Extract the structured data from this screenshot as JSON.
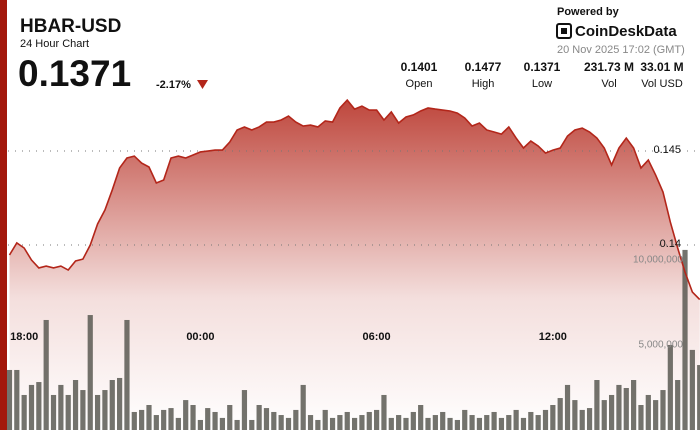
{
  "header": {
    "title": "HBAR-USD",
    "subtitle": "24 Hour Chart",
    "price": "0.1371",
    "change": "-2.17%",
    "powered_by": "Powered by",
    "brand": "CoinDeskData",
    "timestamp": "20 Nov 2025 17:02 (GMT)",
    "stats": [
      {
        "value": "0.1401",
        "label": "Open"
      },
      {
        "value": "0.1477",
        "label": "High"
      },
      {
        "value": "0.1371",
        "label": "Low"
      },
      {
        "value": "231.73 M",
        "label": "Vol"
      },
      {
        "value": "33.01 M",
        "label": "Vol USD"
      }
    ]
  },
  "chart_data": {
    "type": "area",
    "x": [
      17.5,
      17.75,
      18,
      18.25,
      18.5,
      18.75,
      19,
      19.25,
      19.5,
      19.75,
      20,
      20.25,
      20.5,
      20.75,
      21,
      21.25,
      21.5,
      21.75,
      22,
      22.25,
      22.5,
      22.75,
      23,
      23.25,
      23.5,
      23.75,
      24,
      24.25,
      24.5,
      24.75,
      25,
      25.25,
      25.5,
      25.75,
      26,
      26.25,
      26.5,
      26.75,
      27,
      27.25,
      27.5,
      27.75,
      28,
      28.25,
      28.5,
      28.75,
      29,
      29.25,
      29.5,
      29.75,
      30,
      30.25,
      30.5,
      30.75,
      31,
      31.25,
      31.5,
      31.75,
      32,
      32.25,
      32.5,
      32.75,
      33,
      33.25,
      33.5,
      33.75,
      34,
      34.25,
      34.5,
      34.75,
      35,
      35.25,
      35.5,
      35.75,
      36,
      36.25,
      36.5,
      36.75,
      37,
      37.25,
      37.5,
      37.75,
      38,
      38.25,
      38.5,
      38.75,
      39,
      39.25,
      39.5,
      39.75,
      40,
      40.25,
      40.5,
      40.75,
      41
    ],
    "xlim": [
      17.45,
      41.01
    ],
    "xticks": [
      {
        "value": 18,
        "label": "18:00"
      },
      {
        "value": 24,
        "label": "00:00"
      },
      {
        "value": 30,
        "label": "06:00"
      },
      {
        "value": 36,
        "label": "12:00"
      }
    ],
    "ylim": [
      0.13016,
      0.14798
    ],
    "yticks": [
      0.145,
      0.14
    ],
    "y2lim": [
      0,
      19700000
    ],
    "y2ticks": [
      {
        "value": 10000000,
        "label": "10,000,000"
      },
      {
        "value": 5000000,
        "label": "5,000,000"
      }
    ],
    "grid": true,
    "series": [
      {
        "type": "area",
        "color": "#b3261a",
        "values": [
          0.13947,
          0.14011,
          0.13984,
          0.1392,
          0.13878,
          0.13888,
          0.13878,
          0.13888,
          0.13867,
          0.13915,
          0.13925,
          0.14,
          0.14112,
          0.14186,
          0.14293,
          0.1441,
          0.14463,
          0.14473,
          0.14436,
          0.14415,
          0.1433,
          0.14346,
          0.14463,
          0.14473,
          0.14463,
          0.14479,
          0.14495,
          0.145,
          0.14505,
          0.14505,
          0.14548,
          0.14612,
          0.14628,
          0.14612,
          0.14628,
          0.14654,
          0.14654,
          0.14665,
          0.14686,
          0.14654,
          0.14633,
          0.14638,
          0.14628,
          0.1466,
          0.14654,
          0.14729,
          0.14771,
          0.14723,
          0.14739,
          0.14718,
          0.14718,
          0.14665,
          0.14708,
          0.14649,
          0.14681,
          0.14692,
          0.14713,
          0.14729,
          0.14723,
          0.14718,
          0.14713,
          0.14702,
          0.14676,
          0.14633,
          0.14649,
          0.14612,
          0.14601,
          0.1459,
          0.14628,
          0.14569,
          0.14516,
          0.14553,
          0.14527,
          0.14489,
          0.14505,
          0.14516,
          0.1458,
          0.14612,
          0.14622,
          0.14601,
          0.14569,
          0.14516,
          0.14426,
          0.14516,
          0.14569,
          0.14516,
          0.1441,
          0.14452,
          0.14372,
          0.14282,
          0.14122,
          0.13984,
          0.13856,
          0.1375,
          0.1371
        ]
      },
      {
        "type": "bar",
        "axis": "y2",
        "color": "#505048",
        "values": [
          3530000,
          3530000,
          2060000,
          2650000,
          2820000,
          6470000,
          2060000,
          2650000,
          2060000,
          2940000,
          2350000,
          6760000,
          2060000,
          2350000,
          2940000,
          3060000,
          6470000,
          1060000,
          1180000,
          1470000,
          880000,
          1180000,
          1290000,
          710000,
          1760000,
          1470000,
          590000,
          1290000,
          1060000,
          710000,
          1470000,
          590000,
          2350000,
          590000,
          1470000,
          1290000,
          1060000,
          880000,
          710000,
          1180000,
          2650000,
          880000,
          590000,
          1180000,
          710000,
          880000,
          1060000,
          710000,
          880000,
          1060000,
          1180000,
          2060000,
          710000,
          880000,
          710000,
          1060000,
          1470000,
          710000,
          880000,
          1060000,
          710000,
          590000,
          1180000,
          880000,
          710000,
          880000,
          1060000,
          710000,
          880000,
          1180000,
          710000,
          1060000,
          880000,
          1180000,
          1470000,
          1880000,
          2650000,
          1760000,
          1180000,
          1290000,
          2940000,
          1760000,
          2060000,
          2650000,
          2470000,
          2940000,
          1470000,
          2060000,
          1760000,
          2350000,
          5000000,
          2940000,
          10590000,
          4710000,
          3820000
        ]
      }
    ]
  }
}
